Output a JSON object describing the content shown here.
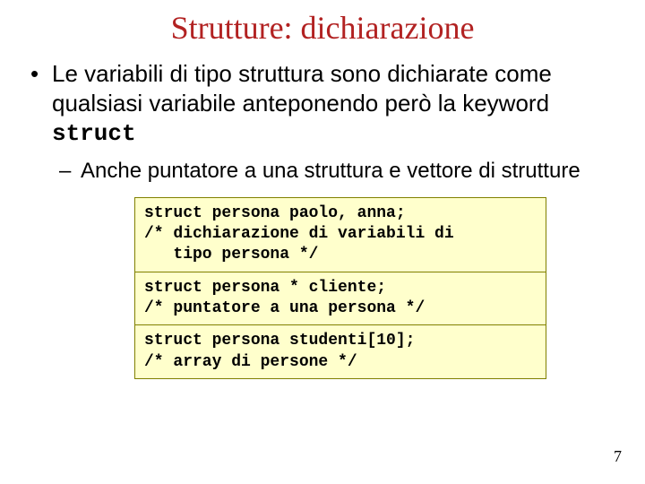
{
  "title": "Strutture: dichiarazione",
  "title_color": "#b22222",
  "title_fontsize": 36,
  "title_fontfamily": "Times New Roman",
  "bullet1_pre": "Le variabili di tipo struttura sono dichiarate come qualsiasi variabile anteponendo però la keyword ",
  "bullet1_kw": "struct",
  "bullet1_fontsize": 26,
  "bullet2": "Anche puntatore a una struttura e vettore di strutture",
  "bullet2_fontsize": 24,
  "code": {
    "background_color": "#ffffcc",
    "border_color": "#808000",
    "fontfamily": "Courier New",
    "fontsize": 18,
    "fontweight": "bold",
    "block1": "struct persona paolo, anna;\n/* dichiarazione di variabili di\n   tipo persona */",
    "block2": "struct persona * cliente;\n/* puntatore a una persona */",
    "block3": "struct persona studenti[10];\n/* array di persone */"
  },
  "page_number": "7",
  "page_bg": "#ffffff"
}
